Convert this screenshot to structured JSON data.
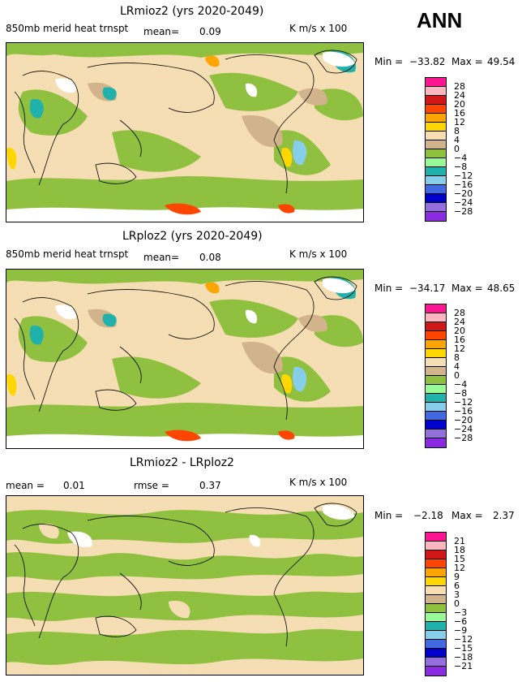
{
  "season": "ANN",
  "panels": [
    {
      "title": "LRmioz2 (yrs 2020-2049)",
      "left_label": "850mb  merid  heat  trnspt",
      "mean_label": "mean=",
      "mean_value": "0.09",
      "units": "K  m/s  x  100",
      "min_label": "Min =",
      "min_value": "−33.82",
      "max_label": "Max =",
      "max_value": "49.54",
      "levels": [
        "28",
        "24",
        "20",
        "16",
        "12",
        "8",
        "4",
        "0",
        "−4",
        "−8",
        "−12",
        "−16",
        "−20",
        "−24",
        "−28"
      ]
    },
    {
      "title": "LRploz2 (yrs 2020-2049)",
      "left_label": "850mb  merid  heat  trnspt",
      "mean_label": "mean=",
      "mean_value": "0.08",
      "units": "K  m/s  x  100",
      "min_label": "Min =",
      "min_value": "−34.17",
      "max_label": "Max =",
      "max_value": "48.65",
      "levels": [
        "28",
        "24",
        "20",
        "16",
        "12",
        "8",
        "4",
        "0",
        "−4",
        "−8",
        "−12",
        "−16",
        "−20",
        "−24",
        "−28"
      ]
    },
    {
      "title": "LRmioz2 - LRploz2",
      "left_label": "mean  =",
      "mean_value": "0.01",
      "rmse_label": "rmse  =",
      "rmse_value": "0.37",
      "units": "K  m/s  x  100",
      "min_label": "Min =",
      "min_value": "−2.18",
      "max_label": "Max =",
      "max_value": "2.37",
      "levels": [
        "21",
        "18",
        "15",
        "12",
        "9",
        "6",
        "3",
        "0",
        "−3",
        "−6",
        "−9",
        "−12",
        "−15",
        "−18",
        "−21"
      ]
    }
  ],
  "colors": {
    "scale": [
      "#ff1493",
      "#ffb6c1",
      "#d01818",
      "#ff4500",
      "#ffa500",
      "#ffd700",
      "#f5deb3",
      "#d2b48c",
      "#90c040",
      "#98fb98",
      "#20b2aa",
      "#87ceeb",
      "#4169e1",
      "#0000cd",
      "#9370db",
      "#8a2be2"
    ]
  }
}
